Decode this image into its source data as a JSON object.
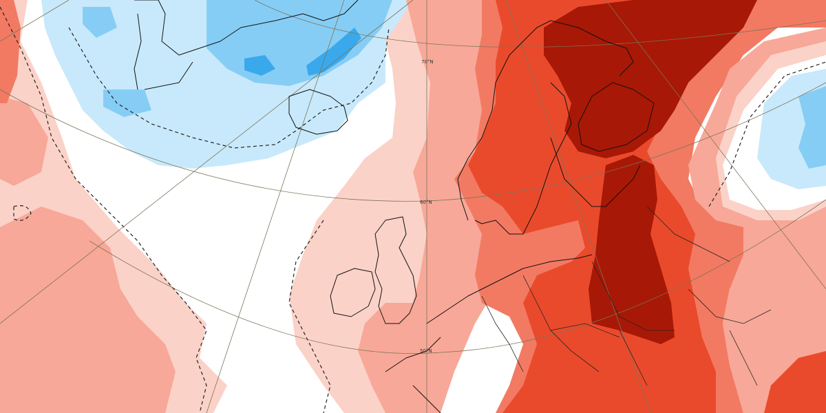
{
  "map": {
    "graticule_labels": [
      "70°N",
      "60°N",
      "50°N"
    ],
    "colors": {
      "strong_cold": "#3aa9ec",
      "moderate_cold": "#86cdf5",
      "mild_cold": "#c8e9fb",
      "neutral": "#ffffff",
      "mild_warm": "#fbd2c8",
      "moderate_warm": "#f8a898",
      "warm": "#f27a63",
      "strong_warm": "#ea4a2c",
      "extreme_warm": "#a81806"
    }
  }
}
